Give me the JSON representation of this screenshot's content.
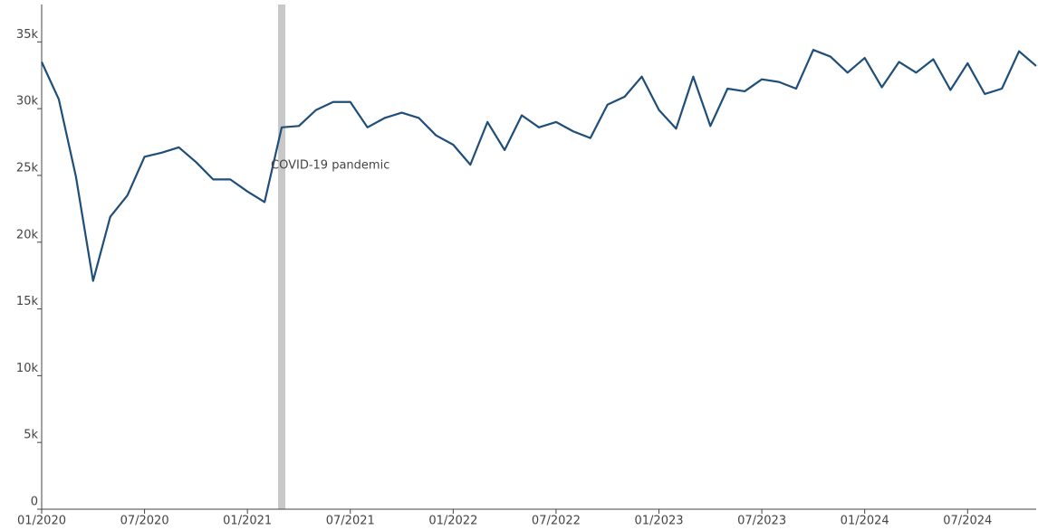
{
  "chart_data": {
    "type": "line",
    "x": [
      "01/2020",
      "02/2020",
      "03/2020",
      "04/2020",
      "05/2020",
      "06/2020",
      "07/2020",
      "08/2020",
      "09/2020",
      "10/2020",
      "11/2020",
      "12/2020",
      "01/2021",
      "02/2021",
      "03/2021",
      "04/2021",
      "05/2021",
      "06/2021",
      "07/2021",
      "08/2021",
      "09/2021",
      "10/2021",
      "11/2021",
      "12/2021",
      "01/2022",
      "02/2022",
      "03/2022",
      "04/2022",
      "05/2022",
      "06/2022",
      "07/2022",
      "08/2022",
      "09/2022",
      "10/2022",
      "11/2022",
      "12/2022",
      "01/2023",
      "02/2023",
      "03/2023",
      "04/2023",
      "05/2023",
      "06/2023",
      "07/2023",
      "08/2023",
      "09/2023",
      "10/2023",
      "11/2023",
      "12/2023",
      "01/2024",
      "02/2024",
      "03/2024",
      "04/2024",
      "05/2024",
      "06/2024",
      "07/2024",
      "08/2024",
      "09/2024",
      "10/2024",
      "11/2024"
    ],
    "series": [
      {
        "color": "#1f4e79",
        "values": [
          33500,
          30700,
          24900,
          17100,
          21900,
          23500,
          26400,
          26700,
          27100,
          26000,
          24700,
          24700,
          23800,
          23000,
          28600,
          28700,
          29900,
          30500,
          30500,
          28600,
          29300,
          29700,
          29300,
          28000,
          27300,
          25800,
          29000,
          26900,
          29500,
          28600,
          29000,
          28300,
          27800,
          30300,
          30900,
          32400,
          29900,
          28500,
          32400,
          28700,
          31500,
          31300,
          32200,
          32000,
          31500,
          34400,
          33900,
          32700,
          33800,
          31600,
          33500,
          32700,
          33700,
          31400,
          33400,
          31100,
          31500,
          34300,
          33200
        ]
      }
    ],
    "xlim": [
      "01/2020",
      "11/2024"
    ],
    "xticks": [
      "01/2020",
      "07/2020",
      "01/2021",
      "07/2021",
      "01/2022",
      "07/2022",
      "01/2023",
      "07/2023",
      "01/2024",
      "07/2024"
    ],
    "ylim": [
      0,
      37800
    ],
    "yticks": [
      0,
      {
        "value": 5000,
        "label": "5k"
      },
      {
        "value": 10000,
        "label": "10k"
      },
      {
        "value": 15000,
        "label": "15k"
      },
      {
        "value": 20000,
        "label": "20k"
      },
      {
        "value": 25000,
        "label": "25k"
      },
      {
        "value": 30000,
        "label": "30k"
      },
      {
        "value": 35000,
        "label": "35k"
      }
    ],
    "annotations": [
      {
        "x": "03/2021",
        "text": "COVID-19 pandemic",
        "color": "#c8c8c8"
      }
    ]
  }
}
